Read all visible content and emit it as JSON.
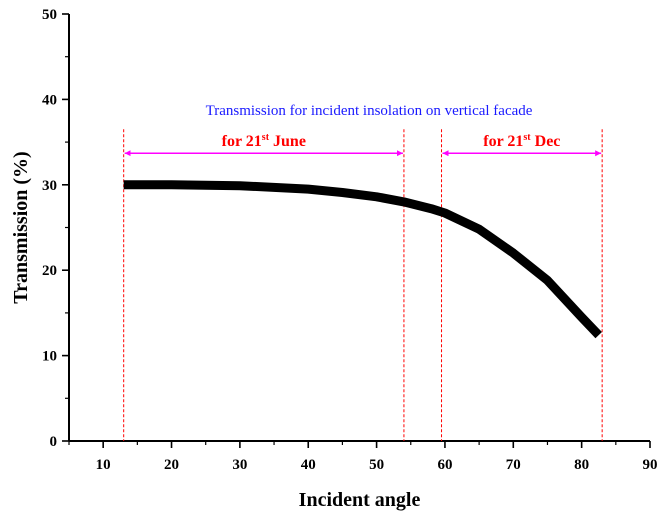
{
  "chart_data": {
    "type": "line",
    "title": "",
    "xlabel": "Incident angle",
    "ylabel": "Transmission (%)",
    "xlim": [
      5,
      90
    ],
    "ylim": [
      0,
      50
    ],
    "x_ticks": [
      10,
      20,
      30,
      40,
      50,
      60,
      70,
      80,
      90
    ],
    "y_ticks": [
      0,
      10,
      20,
      30,
      40,
      50
    ],
    "grid": false,
    "legend": "none",
    "series": [
      {
        "color": "#000000",
        "x": [
          13,
          20,
          30,
          40,
          45,
          50,
          54,
          58,
          60,
          65,
          70,
          75,
          80,
          82.5
        ],
        "y": [
          30.0,
          30.0,
          29.9,
          29.5,
          29.1,
          28.6,
          28.0,
          27.2,
          26.7,
          24.8,
          22.0,
          18.8,
          14.5,
          12.4
        ]
      }
    ],
    "annotations": {
      "main_text": "Transmission for incident insolation on vertical facade",
      "main_color": "#1a1aff",
      "reference_lines_x": [
        13,
        54,
        59.5,
        83
      ],
      "reference_color": "#ff0000",
      "arrow_color": "#ff00ff",
      "june": {
        "prefix": "for 21",
        "sup": "st",
        "suffix": " June",
        "x_start": 13,
        "x_end": 54,
        "y": 33.7
      },
      "dec": {
        "prefix": "for 21",
        "sup": "st",
        "suffix": " Dec",
        "x_start": 59.5,
        "x_end": 83,
        "y": 33.7
      }
    }
  }
}
